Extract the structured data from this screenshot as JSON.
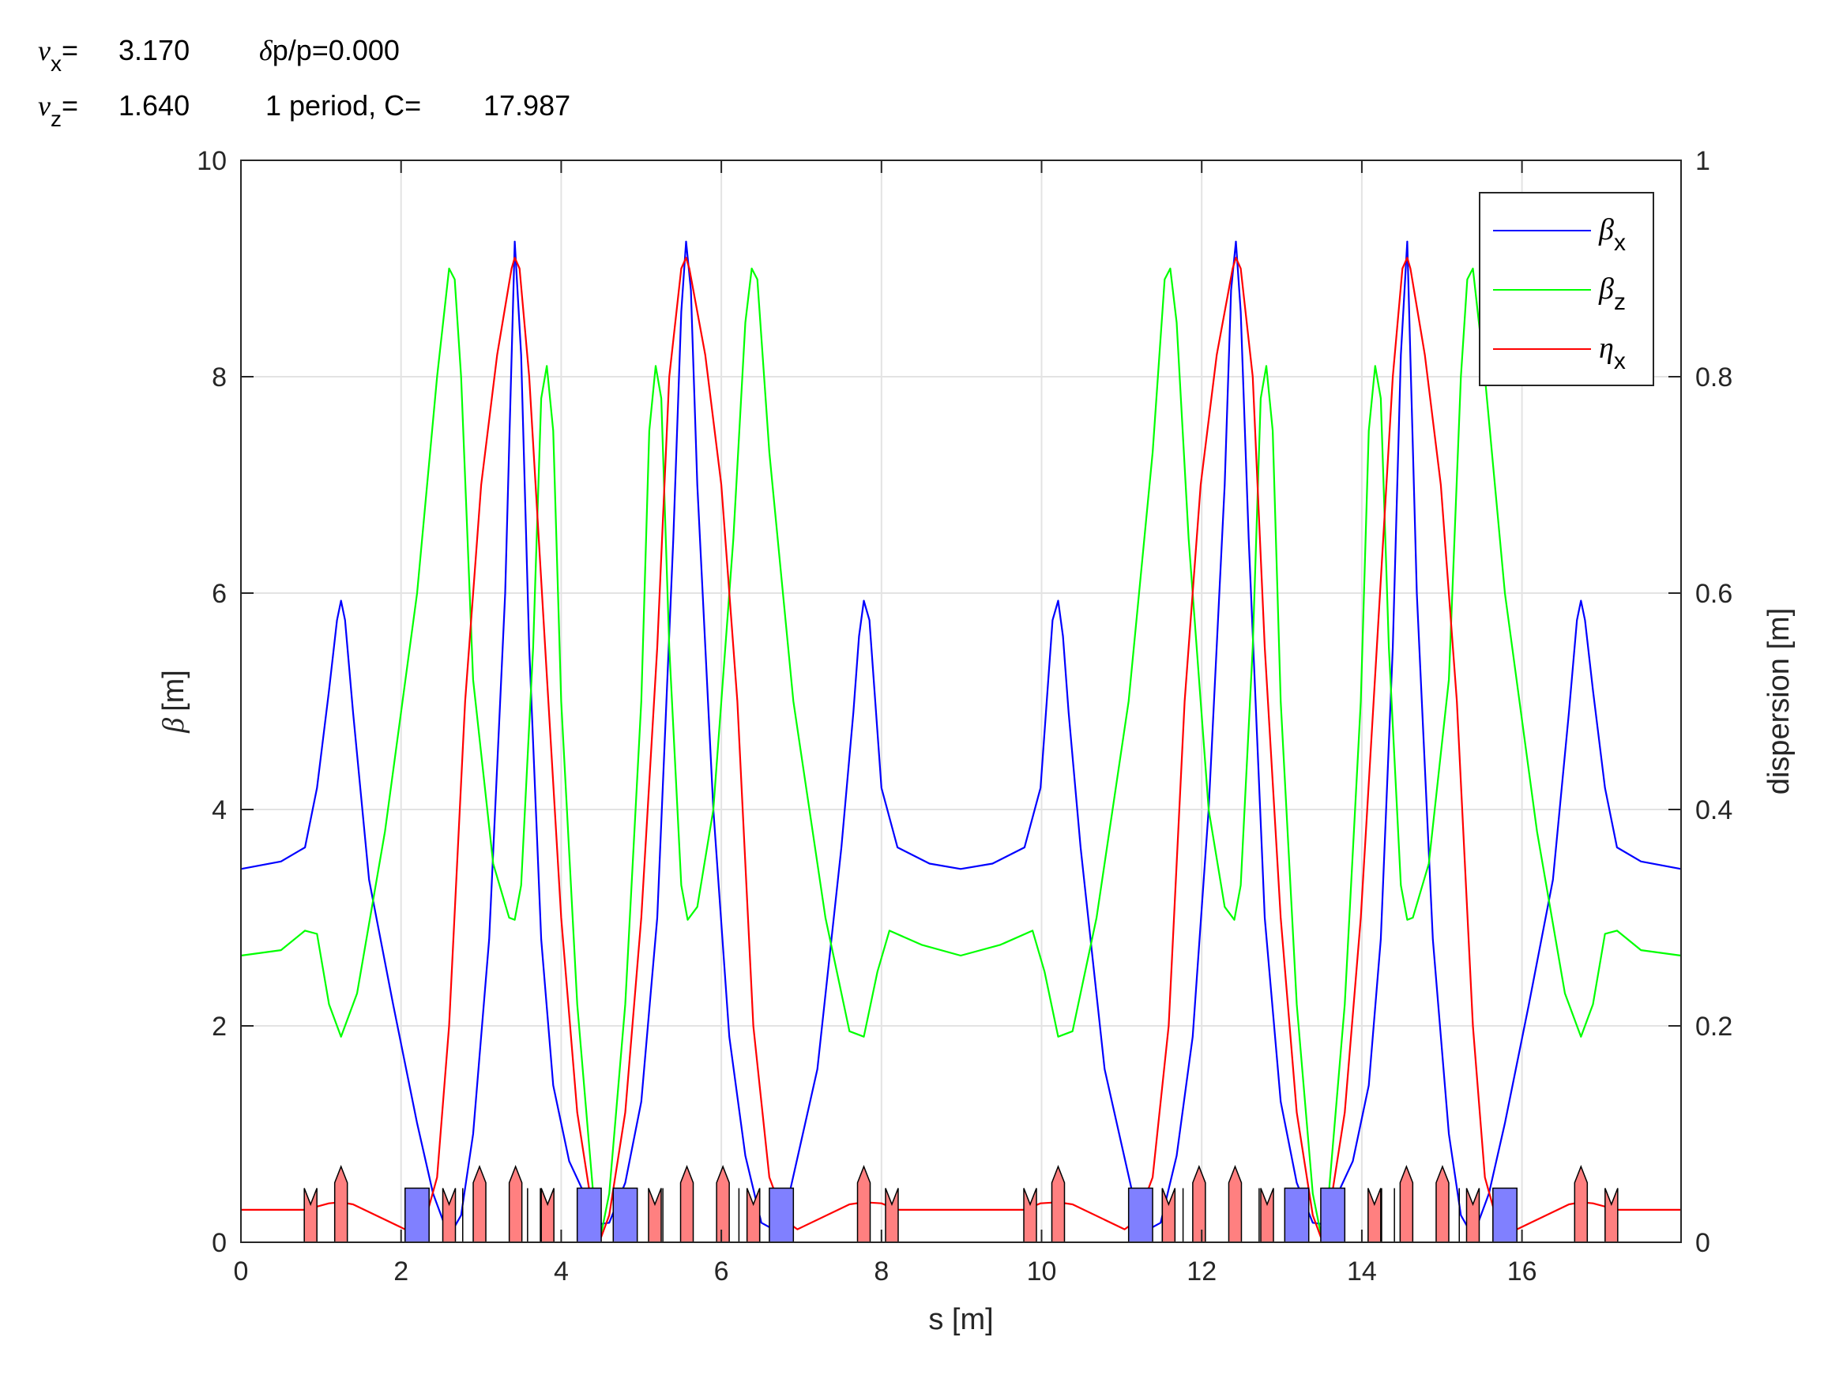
{
  "header": {
    "nux_sym": "ν",
    "nux_sub": "x",
    "nux_eq": "=",
    "nux_val": "3.170",
    "dpp_sym": "δ",
    "dpp_text": "p/p=0.000",
    "nuz_sym": "ν",
    "nuz_sub": "z",
    "nuz_eq": "=",
    "nuz_val": "1.640",
    "period_text": "1 period, C=",
    "circumference": "17.987"
  },
  "chart_data": {
    "type": "line",
    "xlabel": "s [m]",
    "ylabel_sym": "β",
    "ylabel_unit": "[m]",
    "y2label": "dispersion [m]",
    "xlim": [
      0,
      17.987
    ],
    "ylim": [
      0,
      10
    ],
    "y2lim": [
      0,
      1
    ],
    "xticks": [
      0,
      2,
      4,
      6,
      8,
      10,
      12,
      14,
      16
    ],
    "yticks": [
      0,
      2,
      4,
      6,
      8,
      10
    ],
    "y2ticks": [
      "0",
      "0.2",
      "0.4",
      "0.6",
      "0.8",
      "1"
    ],
    "grid": true,
    "legend_position": "top-right",
    "series": [
      {
        "name": "βx",
        "sym": "β",
        "sub": "x",
        "color": "#0000ff",
        "axis": "left",
        "x": [
          0,
          0.5,
          0.8,
          0.95,
          1.1,
          1.2,
          1.25,
          1.3,
          1.4,
          1.6,
          1.9,
          2.2,
          2.4,
          2.55,
          2.65,
          2.75,
          2.9,
          3.1,
          3.3,
          3.42,
          3.5,
          3.6,
          3.75,
          3.9,
          4.1,
          4.35,
          4.5,
          4.6,
          4.8,
          5.0,
          5.2,
          5.4,
          5.5,
          5.56,
          5.62,
          5.7,
          5.9,
          6.1,
          6.3,
          6.5,
          6.65,
          6.85,
          7.2,
          7.5,
          7.65,
          7.72,
          7.78,
          7.85,
          8.0,
          8.2,
          8.6,
          8.99
        ],
        "values": [
          3.45,
          3.52,
          3.65,
          4.2,
          5.1,
          5.75,
          5.93,
          5.75,
          4.9,
          3.35,
          2.2,
          1.1,
          0.45,
          0.15,
          0.12,
          0.25,
          1.0,
          2.8,
          6.0,
          9.25,
          8.2,
          5.5,
          2.8,
          1.45,
          0.75,
          0.35,
          0.17,
          0.18,
          0.55,
          1.3,
          3.0,
          6.5,
          8.6,
          9.25,
          8.8,
          7.0,
          4.0,
          1.9,
          0.8,
          0.18,
          0.12,
          0.45,
          1.6,
          3.65,
          4.9,
          5.6,
          5.93,
          5.75,
          4.2,
          3.65,
          3.5,
          3.45
        ]
      },
      {
        "name": "βz",
        "sym": "β",
        "sub": "z",
        "color": "#00ff00",
        "axis": "left",
        "x": [
          0,
          0.5,
          0.8,
          0.95,
          1.1,
          1.25,
          1.45,
          1.8,
          2.2,
          2.45,
          2.6,
          2.67,
          2.75,
          2.9,
          3.15,
          3.35,
          3.42,
          3.5,
          3.65,
          3.75,
          3.82,
          3.9,
          4.0,
          4.2,
          4.4,
          4.5,
          4.6,
          4.8,
          5.0,
          5.1,
          5.18,
          5.25,
          5.35,
          5.5,
          5.58,
          5.7,
          5.9,
          6.15,
          6.3,
          6.38,
          6.45,
          6.6,
          6.9,
          7.3,
          7.6,
          7.78,
          7.95,
          8.1,
          8.5,
          8.99
        ],
        "values": [
          2.65,
          2.7,
          2.88,
          2.85,
          2.2,
          1.9,
          2.3,
          3.8,
          6.0,
          8.0,
          9.0,
          8.9,
          8.0,
          5.2,
          3.5,
          3.0,
          2.98,
          3.3,
          5.5,
          7.8,
          8.1,
          7.5,
          5.0,
          2.2,
          0.45,
          0.08,
          0.45,
          2.2,
          5.0,
          7.5,
          8.1,
          7.8,
          5.5,
          3.3,
          2.98,
          3.1,
          4.0,
          6.5,
          8.5,
          9.0,
          8.9,
          7.3,
          5.0,
          3.0,
          1.95,
          1.9,
          2.5,
          2.88,
          2.75,
          2.65
        ]
      },
      {
        "name": "ηx",
        "sym": "η",
        "sub": "x",
        "color": "#ff0000",
        "axis": "right",
        "x": [
          0,
          0.8,
          1.1,
          1.25,
          1.4,
          2.05,
          2.3,
          2.45,
          2.6,
          2.8,
          3.0,
          3.2,
          3.38,
          3.42,
          3.48,
          3.6,
          3.8,
          4.0,
          4.2,
          4.4,
          4.5,
          4.6,
          4.8,
          5.0,
          5.2,
          5.35,
          5.5,
          5.56,
          5.6,
          5.8,
          6.0,
          6.2,
          6.4,
          6.6,
          6.8,
          6.95,
          7.6,
          7.78,
          8.0,
          8.2,
          8.99
        ],
        "values": [
          0.03,
          0.03,
          0.036,
          0.037,
          0.035,
          0.012,
          0.02,
          0.06,
          0.2,
          0.5,
          0.7,
          0.82,
          0.9,
          0.91,
          0.9,
          0.8,
          0.55,
          0.3,
          0.12,
          0.025,
          0.005,
          0.025,
          0.12,
          0.3,
          0.55,
          0.8,
          0.9,
          0.91,
          0.9,
          0.82,
          0.7,
          0.5,
          0.2,
          0.06,
          0.02,
          0.012,
          0.035,
          0.037,
          0.036,
          0.03,
          0.03
        ]
      }
    ]
  },
  "lattice": {
    "note": "magnet layout for first half period (mirrored about s = C/2)",
    "dipoles": [
      2.2,
      4.35,
      4.8,
      6.75
    ],
    "quads_focus": [
      1.25,
      2.98,
      3.43,
      5.57,
      6.02,
      7.78
    ],
    "quads_defocus": [
      0.87,
      2.6,
      3.83,
      5.17,
      6.4,
      8.13
    ],
    "thin_markers": [
      2.77,
      3.58,
      3.74,
      5.27,
      6.22,
      6.48
    ]
  }
}
